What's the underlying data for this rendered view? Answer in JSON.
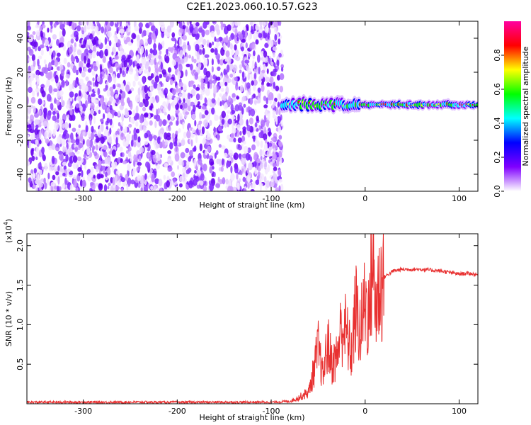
{
  "title": "C2E1.2023.060.10.57.G23",
  "chart_data": [
    {
      "type": "heatmap",
      "xlabel": "Height of straight line (km)",
      "ylabel": "Frequency (Hz)",
      "xlim": [
        -360,
        120
      ],
      "ylim": [
        -50,
        50
      ],
      "xticks": [
        -300,
        -200,
        -100,
        0,
        100
      ],
      "xtick_labels": [
        "-300",
        "-200",
        "-100",
        "0",
        "100"
      ],
      "yticks": [
        -40,
        -20,
        0,
        20,
        40
      ],
      "ytick_labels": [
        "-40",
        "-20",
        "0",
        "20",
        "40"
      ],
      "noise_region_x": [
        -360,
        -88
      ],
      "signal_region_x": [
        -88,
        120
      ],
      "signal_center_freq_hz": 1,
      "colorbar": {
        "label": "Normalized spectral amplitude",
        "range": [
          0,
          1
        ],
        "ticks": [
          0.0,
          0.2,
          0.4,
          0.6,
          0.8
        ],
        "tick_labels": [
          "0.0",
          "0.2",
          "0.4",
          "0.6",
          "0.8"
        ],
        "colors": [
          "#ffffff",
          "#8000ff",
          "#0000ff",
          "#00ffff",
          "#00ff00",
          "#ffff00",
          "#ff0000",
          "#ff00a0"
        ]
      }
    },
    {
      "type": "line",
      "xlabel": "Height of straight line (km)",
      "ylabel": "SNR (10 * v/v)",
      "y_multiplier": "(x10",
      "y_multiplier_exp": "4",
      "y_multiplier_close": ")",
      "xlim": [
        -360,
        120
      ],
      "ylim": [
        0,
        2.15
      ],
      "xticks": [
        -300,
        -200,
        -100,
        0,
        100
      ],
      "xtick_labels": [
        "-300",
        "-200",
        "-100",
        "0",
        "100"
      ],
      "yticks": [
        0.5,
        1.0,
        1.5,
        2.0
      ],
      "ytick_labels": [
        "0.5",
        "1.0",
        "1.5",
        "2.0"
      ],
      "color": "#e83030",
      "series": [
        {
          "x": [
            -360,
            -300,
            -200,
            -100,
            -80,
            -70,
            -60,
            -55,
            -50,
            -45,
            -40,
            -35,
            -30,
            -25,
            -20,
            -15,
            -10,
            -5,
            0,
            5,
            8,
            10,
            15,
            20,
            30,
            40,
            50,
            60,
            70,
            80,
            90,
            100,
            110,
            120
          ],
          "values": [
            0.02,
            0.02,
            0.02,
            0.02,
            0.03,
            0.08,
            0.15,
            0.4,
            0.7,
            0.35,
            0.75,
            0.5,
            0.6,
            1.0,
            0.9,
            0.6,
            1.2,
            0.9,
            1.3,
            1.1,
            2.1,
            1.2,
            1.45,
            1.6,
            1.68,
            1.7,
            1.7,
            1.7,
            1.69,
            1.68,
            1.66,
            1.64,
            1.65,
            1.63
          ]
        }
      ]
    }
  ]
}
